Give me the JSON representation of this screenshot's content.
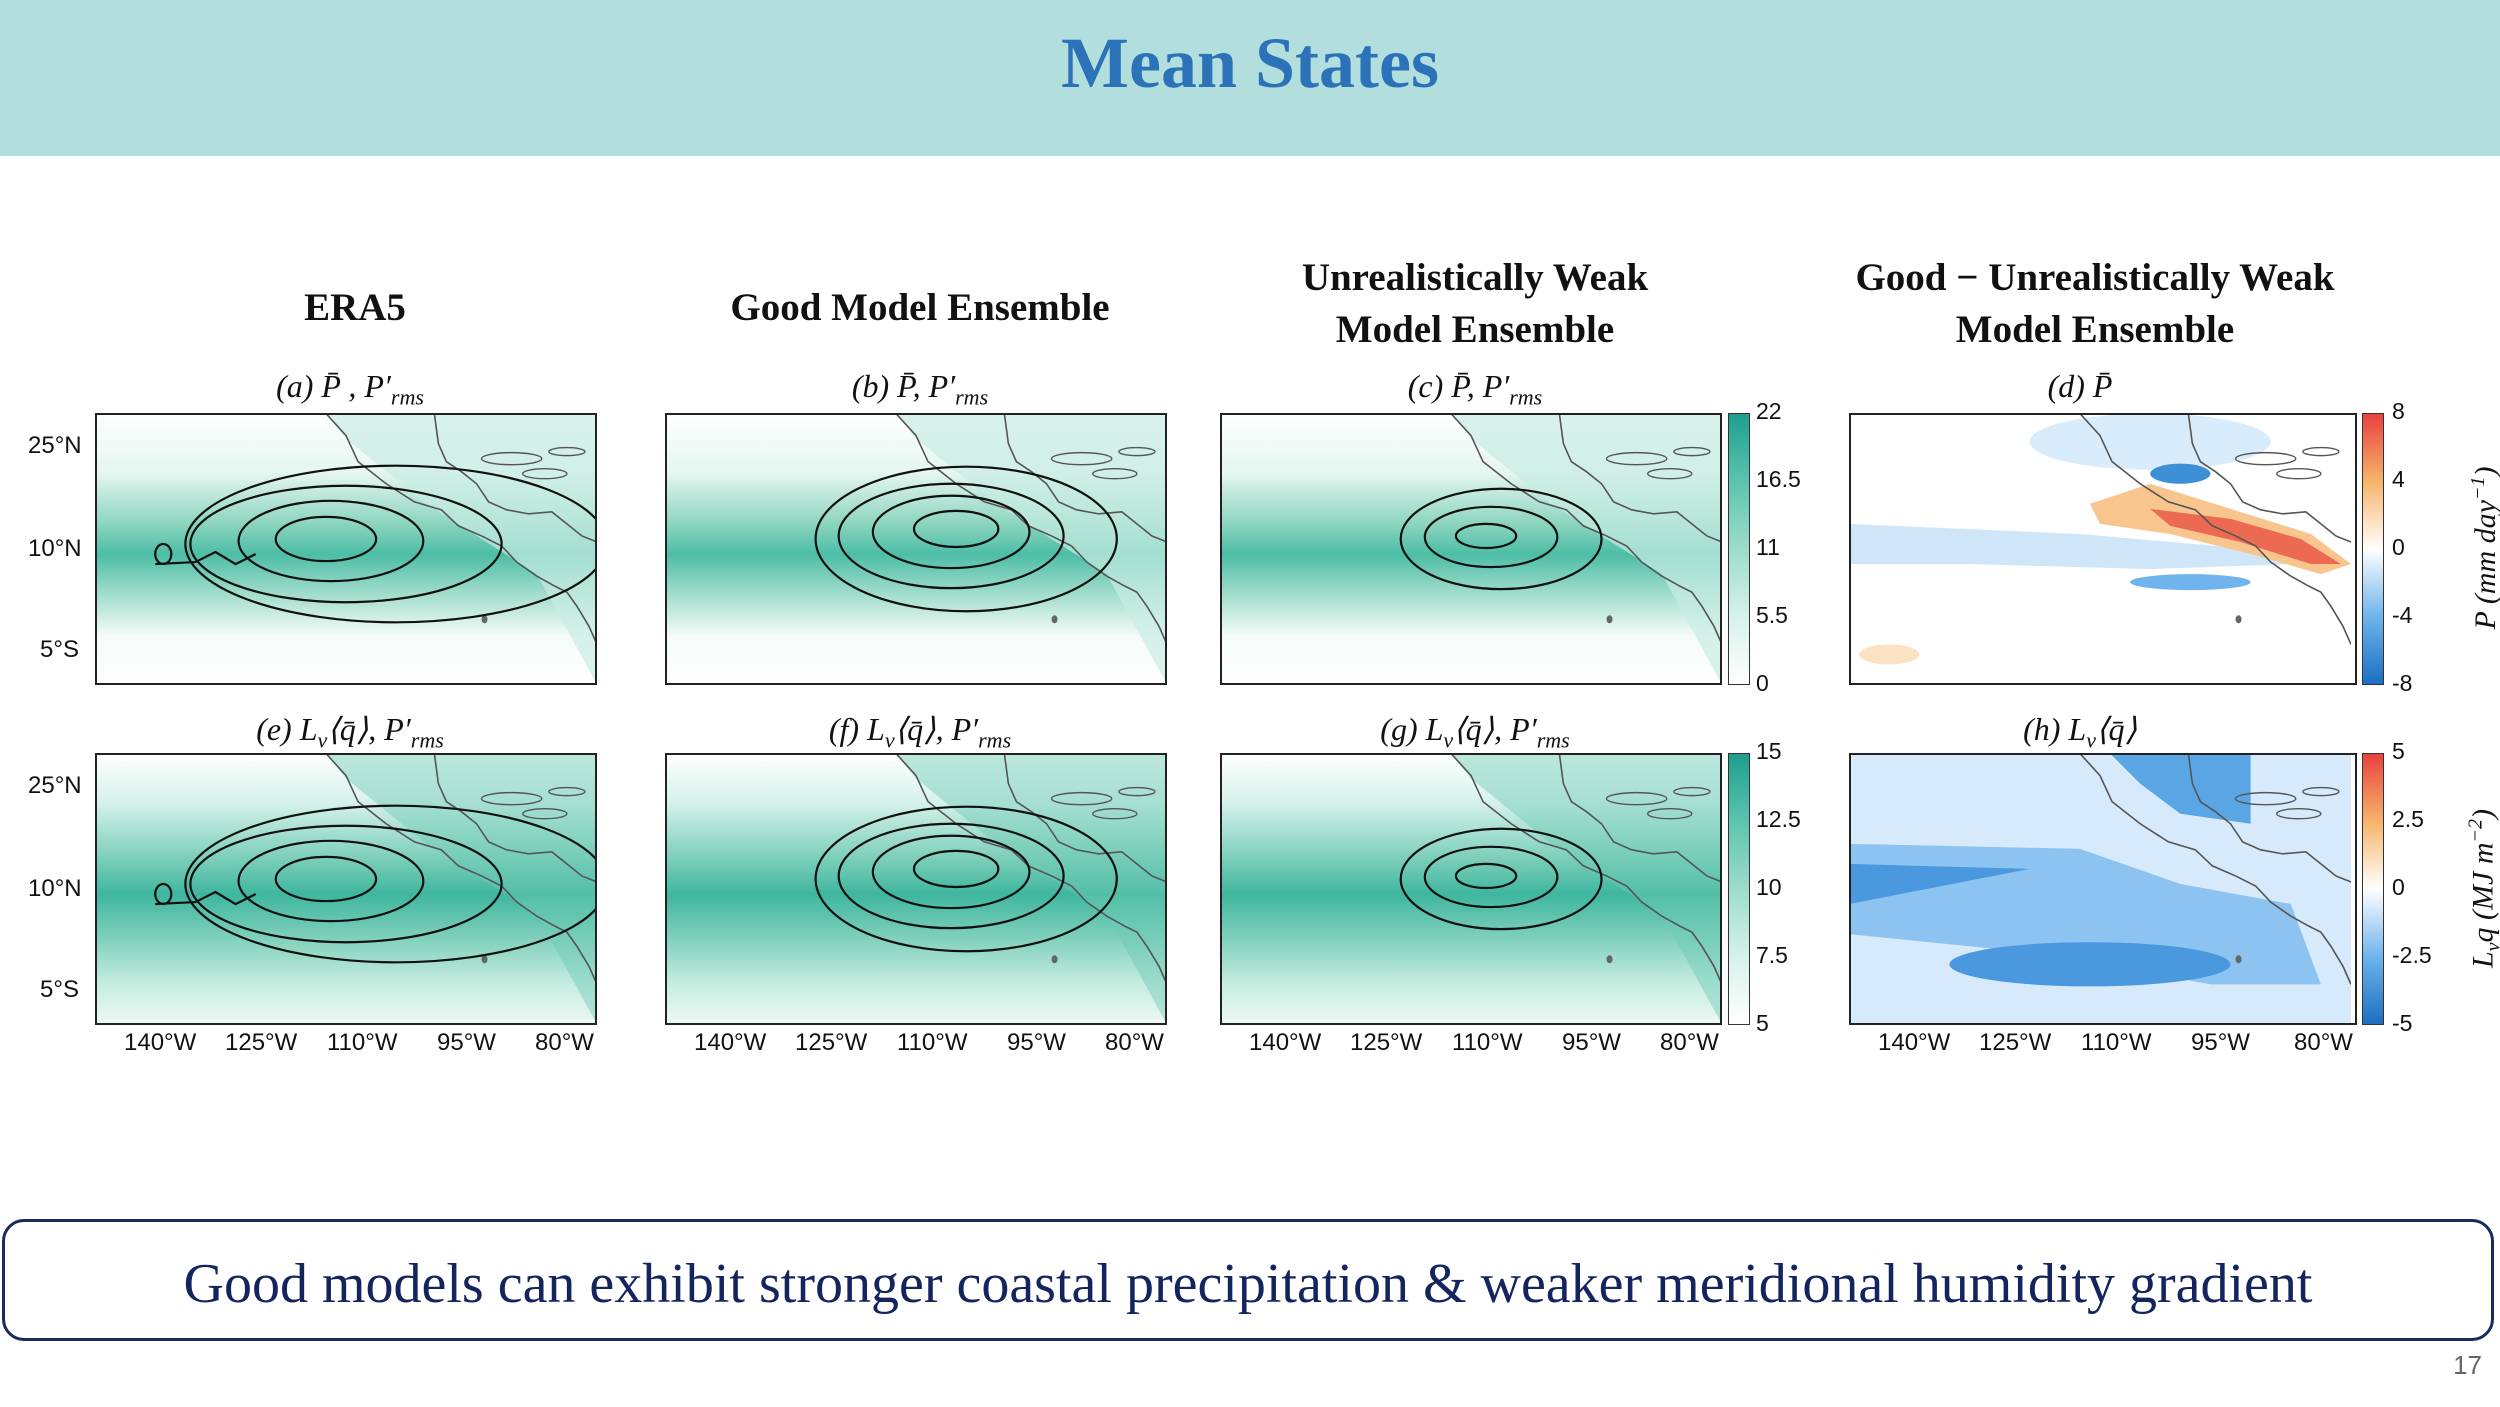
{
  "slide": {
    "title": "Mean States",
    "page_number": "17",
    "conclusion": "Good models can exhibit stronger coastal precipitation & weaker meridional humidity gradient"
  },
  "columns": [
    {
      "line1": "ERA5",
      "line2": ""
    },
    {
      "line1": "Good Model Ensemble",
      "line2": ""
    },
    {
      "line1": "Unrealistically Weak",
      "line2": "Model Ensemble"
    },
    {
      "line1": "Good − Unrealistically Weak",
      "line2": "Model Ensemble"
    }
  ],
  "panels": {
    "a": {
      "letter": "(a)",
      "field": "P̄ , P′",
      "sub": "rms"
    },
    "b": {
      "letter": "(b)",
      "field": "P̄, P′",
      "sub": "rms"
    },
    "c": {
      "letter": "(c)",
      "field": "P̄, P′",
      "sub": "rms"
    },
    "d": {
      "letter": "(d)",
      "field": "P̄",
      "sub": ""
    },
    "e": {
      "letter": "(e)",
      "field": "L",
      "sub": "v",
      "rest": "⟨q̄⟩, P′",
      "sub2": "rms"
    },
    "f": {
      "letter": "(f)",
      "field": "L",
      "sub": "v",
      "rest": "⟨q̄⟩, P′",
      "sub2": "rms"
    },
    "g": {
      "letter": "(g)",
      "field": "L",
      "sub": "v",
      "rest": "⟨q̄⟩, P′",
      "sub2": "rms"
    },
    "h": {
      "letter": "(h)",
      "field": "L",
      "sub": "v",
      "rest": "⟨q̄⟩",
      "sub2": ""
    }
  },
  "axes": {
    "lat_ticks": [
      "25°N",
      "10°N",
      "5°S"
    ],
    "lon_ticks": [
      "140°W",
      "125°W",
      "110°W",
      "95°W",
      "80°W"
    ]
  },
  "colorbars": {
    "precip_mean": {
      "ticks": [
        "22",
        "16.5",
        "11",
        "5.5",
        "0"
      ],
      "range": [
        0,
        22
      ]
    },
    "moisture_mean": {
      "ticks": [
        "15",
        "12.5",
        "10",
        "7.5",
        "5"
      ],
      "range": [
        5,
        15
      ]
    },
    "precip_diff": {
      "ticks": [
        "8",
        "4",
        "0",
        "-4",
        "-8"
      ],
      "range": [
        -8,
        8
      ],
      "label_main": "P (mm day",
      "label_sup": "−1",
      "label_end": ")"
    },
    "moisture_diff": {
      "ticks": [
        "5",
        "2.5",
        "0",
        "-2.5",
        "-5"
      ],
      "range": [
        -5,
        5
      ],
      "label_pre": "L",
      "label_sub": "v",
      "label_main": "q (MJ m",
      "label_sup": "−2",
      "label_end": ")"
    }
  },
  "colors": {
    "header_bg": "#b2dede",
    "title": "#2c72b8",
    "teal_dark": "#1e9e8e",
    "teal_light": "#d6f2ea",
    "diff_red": "#e8423f",
    "diff_blue": "#3d8fd6",
    "conclusion_text": "#14245e"
  }
}
